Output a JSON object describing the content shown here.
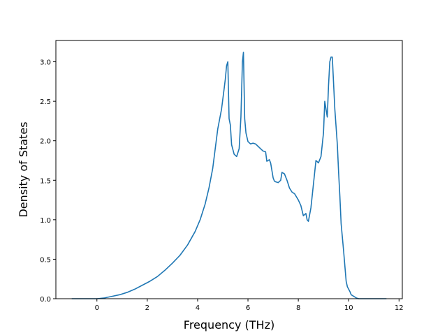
{
  "chart_data": {
    "type": "line",
    "title": "",
    "xlabel": "Frequency (THz)",
    "ylabel": "Density of States",
    "xlim": [
      -1.63,
      12.13
    ],
    "ylim": [
      0.0,
      3.27
    ],
    "xticks": [
      0,
      2,
      4,
      6,
      8,
      10,
      12
    ],
    "yticks": [
      0.0,
      0.5,
      1.0,
      1.5,
      2.0,
      2.5,
      3.0
    ],
    "xtick_labels": [
      "0",
      "2",
      "4",
      "6",
      "8",
      "10",
      "12"
    ],
    "ytick_labels": [
      "0.0",
      "0.5",
      "1.0",
      "1.5",
      "2.0",
      "2.5",
      "3.0"
    ],
    "grid": false,
    "legend": "none",
    "series": [
      {
        "color": "#1f77b4",
        "x": [
          -1.0,
          -0.5,
          0.0,
          0.3,
          0.6,
          0.9,
          1.2,
          1.5,
          1.8,
          2.1,
          2.4,
          2.7,
          3.0,
          3.3,
          3.6,
          3.9,
          4.1,
          4.3,
          4.45,
          4.6,
          4.7,
          4.8,
          4.95,
          5.05,
          5.1,
          5.15,
          5.2,
          5.25,
          5.3,
          5.35,
          5.45,
          5.55,
          5.65,
          5.72,
          5.78,
          5.82,
          5.87,
          5.92,
          6.0,
          6.1,
          6.2,
          6.3,
          6.4,
          6.5,
          6.6,
          6.7,
          6.75,
          6.85,
          6.9,
          7.0,
          7.05,
          7.1,
          7.2,
          7.3,
          7.35,
          7.45,
          7.55,
          7.65,
          7.75,
          7.85,
          8.0,
          8.1,
          8.2,
          8.3,
          8.35,
          8.4,
          8.5,
          8.6,
          8.7,
          8.8,
          8.9,
          9.0,
          9.05,
          9.1,
          9.15,
          9.2,
          9.25,
          9.3,
          9.35,
          9.45,
          9.55,
          9.6,
          9.65,
          9.7,
          9.8,
          9.9,
          9.95,
          10.0,
          10.05,
          10.1,
          10.3,
          10.4,
          10.45,
          10.6,
          11.0,
          11.5
        ],
        "y": [
          0.0,
          0.0,
          0.0,
          0.01,
          0.03,
          0.05,
          0.08,
          0.12,
          0.17,
          0.22,
          0.28,
          0.36,
          0.45,
          0.55,
          0.68,
          0.85,
          1.0,
          1.2,
          1.4,
          1.65,
          1.9,
          2.15,
          2.4,
          2.65,
          2.78,
          2.95,
          3.0,
          2.28,
          2.2,
          1.95,
          1.83,
          1.8,
          1.9,
          2.3,
          3.0,
          3.12,
          2.28,
          2.1,
          1.99,
          1.96,
          1.97,
          1.96,
          1.93,
          1.9,
          1.87,
          1.86,
          1.74,
          1.76,
          1.72,
          1.53,
          1.49,
          1.48,
          1.47,
          1.5,
          1.6,
          1.58,
          1.5,
          1.4,
          1.35,
          1.33,
          1.25,
          1.18,
          1.05,
          1.08,
          1.0,
          0.98,
          1.15,
          1.45,
          1.75,
          1.72,
          1.8,
          2.1,
          2.5,
          2.4,
          2.3,
          2.7,
          3.0,
          3.06,
          3.06,
          2.4,
          1.95,
          1.6,
          1.3,
          0.95,
          0.6,
          0.22,
          0.15,
          0.12,
          0.09,
          0.05,
          0.01,
          0.0,
          0.0,
          0.0,
          0.0,
          0.0
        ]
      }
    ]
  }
}
